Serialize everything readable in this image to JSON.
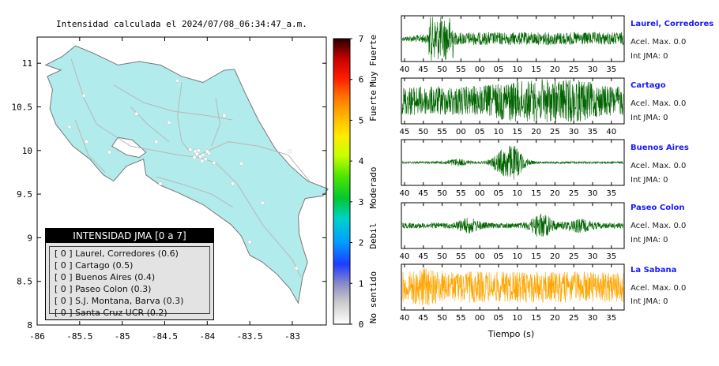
{
  "map": {
    "title": "Intensidad calculada el 2024/07/08_06:34:47_a.m.",
    "x_ticks": [
      "-86",
      "-85.5",
      "-85",
      "-84.5",
      "-84",
      "-83.5",
      "-83"
    ],
    "y_ticks": [
      "11",
      "10.5",
      "10",
      "9.5",
      "9",
      "8.5",
      "8"
    ],
    "land_color": "#b2ebeb",
    "legend": {
      "header": "INTENSIDAD JMA [0 a 7]",
      "rows": [
        "[ 0 ]  Laurel, Corredores (0.6)",
        "[ 0 ]  Cartago (0.5)",
        "[ 0 ]  Buenos Aires (0.4)",
        "[ 0 ]  Paseo Colon (0.3)",
        "[ 0 ]  S.J. Montana, Barva (0.3)",
        "[ 0 ]  Santa Cruz UCR (0.2)"
      ]
    }
  },
  "colorbar": {
    "ticks": [
      "7",
      "6",
      "5",
      "4",
      "3",
      "2",
      "1",
      "0"
    ],
    "labels": [
      "Muy Fuerte",
      "Fuerte",
      "Moderado",
      "Debil",
      "No sentido"
    ]
  },
  "waveforms": {
    "xlabel": "Tiempo (s)",
    "panels": [
      {
        "station": "Laurel, Corredores",
        "accel": "Acel. Max. 0.0",
        "jma": "Int JMA: 0",
        "color": "#006400",
        "ticks": [
          "40",
          "45",
          "50",
          "55",
          "00",
          "05",
          "10",
          "15",
          "20",
          "25",
          "30",
          "35"
        ],
        "first": 40
      },
      {
        "station": "Cartago",
        "accel": "Acel. Max. 0.0",
        "jma": "Int JMA: 0",
        "color": "#006400",
        "ticks": [
          "45",
          "50",
          "55",
          "00",
          "05",
          "10",
          "15",
          "20",
          "25",
          "30",
          "35",
          "40"
        ],
        "first": 45
      },
      {
        "station": "Buenos Aires",
        "accel": "Acel. Max. 0.0",
        "jma": "Int JMA: 0",
        "color": "#006400",
        "ticks": [
          "40",
          "45",
          "50",
          "55",
          "00",
          "05",
          "10",
          "15",
          "20",
          "25",
          "30",
          "35"
        ],
        "first": 40
      },
      {
        "station": "Paseo Colon",
        "accel": "Acel. Max. 0.0",
        "jma": "Int JMA: 0",
        "color": "#006400",
        "ticks": [
          "40",
          "45",
          "50",
          "55",
          "00",
          "05",
          "10",
          "15",
          "20",
          "25",
          "30",
          "35"
        ],
        "first": 40
      },
      {
        "station": "La Sabana",
        "accel": "Acel. Max. 0.0",
        "jma": "Int JMA: 0",
        "color": "#ffa500",
        "ticks": [
          "40",
          "45",
          "50",
          "55",
          "00",
          "05",
          "10",
          "15",
          "20",
          "25",
          "30",
          "35"
        ],
        "first": 40
      }
    ]
  },
  "chart_data": [
    {
      "type": "scatter",
      "title": "Intensidad calculada el 2024/07/08_06:34:47_a.m.",
      "xlim": [
        -86,
        -82.6
      ],
      "ylim": [
        8,
        11.3
      ],
      "legend_title": "INTENSIDAD JMA [0 a 7]",
      "stations": [
        {
          "name": "Laurel, Corredores",
          "jma": 0,
          "value": 0.6
        },
        {
          "name": "Cartago",
          "jma": 0,
          "value": 0.5
        },
        {
          "name": "Buenos Aires",
          "jma": 0,
          "value": 0.4
        },
        {
          "name": "Paseo Colon",
          "jma": 0,
          "value": 0.3
        },
        {
          "name": "S.J. Montana, Barva",
          "jma": 0,
          "value": 0.3
        },
        {
          "name": "Santa Cruz UCR",
          "jma": 0,
          "value": 0.2
        }
      ],
      "colorbar": {
        "range": [
          0,
          7
        ],
        "labels": [
          "No sentido",
          "Debil",
          "Moderado",
          "Fuerte",
          "Muy Fuerte"
        ]
      }
    },
    {
      "type": "line",
      "xlabel": "Tiempo (s)",
      "series": [
        {
          "name": "Laurel, Corredores",
          "accel_max": 0.0,
          "jma": 0
        },
        {
          "name": "Cartago",
          "accel_max": 0.0,
          "jma": 0
        },
        {
          "name": "Buenos Aires",
          "accel_max": 0.0,
          "jma": 0
        },
        {
          "name": "Paseo Colon",
          "accel_max": 0.0,
          "jma": 0
        },
        {
          "name": "La Sabana",
          "accel_max": 0.0,
          "jma": 0
        }
      ]
    }
  ]
}
